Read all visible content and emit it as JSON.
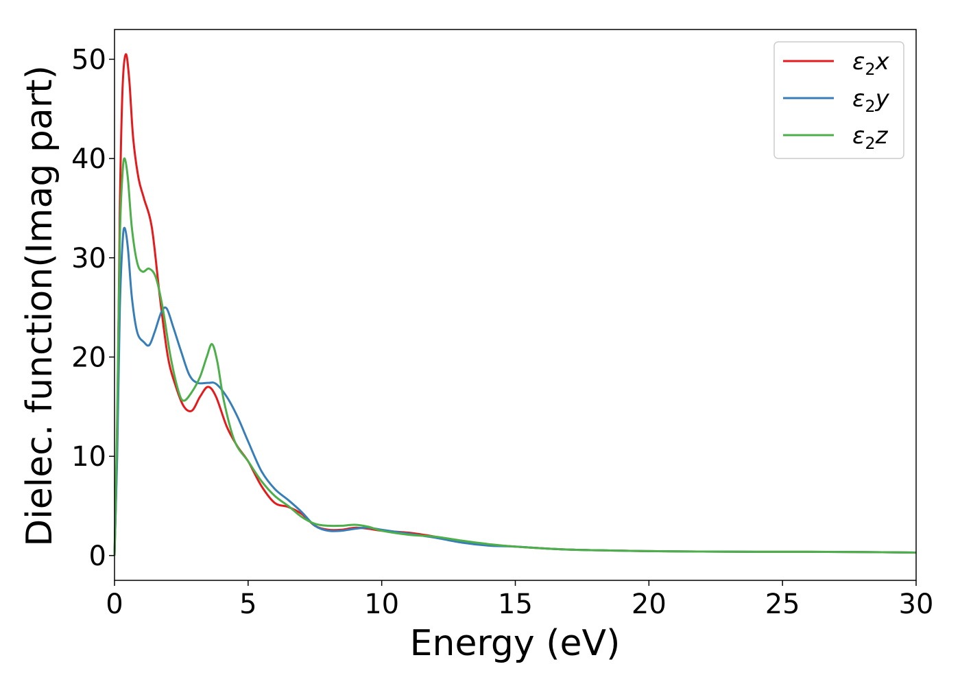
{
  "chart_data": {
    "type": "line",
    "title": "",
    "xlabel": "Energy (eV)",
    "ylabel": "Dielec. function(Imag part)",
    "xlim": [
      0,
      30
    ],
    "ylim": [
      -2.5,
      53
    ],
    "x_ticks": [
      0,
      5,
      10,
      15,
      20,
      25,
      30
    ],
    "y_ticks": [
      0,
      10,
      20,
      30,
      40,
      50
    ],
    "grid": false,
    "legend_position": "top-right",
    "series": [
      {
        "name": "ε2x",
        "legend_base": "ε",
        "legend_sub": "2",
        "legend_var": "x",
        "color": "#e41a1c",
        "points": [
          [
            0,
            0
          ],
          [
            0.1,
            12
          ],
          [
            0.2,
            35
          ],
          [
            0.3,
            47
          ],
          [
            0.42,
            50.5
          ],
          [
            0.55,
            48
          ],
          [
            0.7,
            42
          ],
          [
            0.9,
            38
          ],
          [
            1.1,
            36
          ],
          [
            1.4,
            33
          ],
          [
            1.7,
            26
          ],
          [
            2.0,
            20
          ],
          [
            2.3,
            17
          ],
          [
            2.6,
            15
          ],
          [
            2.9,
            14.6
          ],
          [
            3.2,
            16
          ],
          [
            3.5,
            17
          ],
          [
            3.8,
            16
          ],
          [
            4.2,
            13
          ],
          [
            4.6,
            11
          ],
          [
            5.0,
            9.5
          ],
          [
            5.5,
            7
          ],
          [
            6.0,
            5.3
          ],
          [
            6.5,
            4.9
          ],
          [
            7.0,
            4.2
          ],
          [
            7.5,
            3
          ],
          [
            8.0,
            2.6
          ],
          [
            8.5,
            2.6
          ],
          [
            9.0,
            2.8
          ],
          [
            9.5,
            2.7
          ],
          [
            10.0,
            2.5
          ],
          [
            11.0,
            2.3
          ],
          [
            12.0,
            1.9
          ],
          [
            13.0,
            1.4
          ],
          [
            14.0,
            1.1
          ],
          [
            15.0,
            0.9
          ],
          [
            17.0,
            0.6
          ],
          [
            20.0,
            0.45
          ],
          [
            22.0,
            0.4
          ],
          [
            24.0,
            0.38
          ],
          [
            26.0,
            0.38
          ],
          [
            28.0,
            0.35
          ],
          [
            30.0,
            0.3
          ]
        ]
      },
      {
        "name": "ε2y",
        "legend_base": "ε",
        "legend_sub": "2",
        "legend_var": "y",
        "color": "#377eb8",
        "points": [
          [
            0,
            0
          ],
          [
            0.1,
            10
          ],
          [
            0.2,
            25
          ],
          [
            0.3,
            31.5
          ],
          [
            0.38,
            33
          ],
          [
            0.5,
            31
          ],
          [
            0.65,
            26
          ],
          [
            0.85,
            22.5
          ],
          [
            1.1,
            21.5
          ],
          [
            1.3,
            21.2
          ],
          [
            1.5,
            22.5
          ],
          [
            1.75,
            24.5
          ],
          [
            1.95,
            24.9
          ],
          [
            2.2,
            23
          ],
          [
            2.5,
            20.5
          ],
          [
            2.8,
            18.2
          ],
          [
            3.1,
            17.4
          ],
          [
            3.5,
            17.4
          ],
          [
            3.8,
            17.3
          ],
          [
            4.2,
            16
          ],
          [
            4.6,
            14
          ],
          [
            5.0,
            11.5
          ],
          [
            5.5,
            8.5
          ],
          [
            6.0,
            6.7
          ],
          [
            6.5,
            5.6
          ],
          [
            7.0,
            4.4
          ],
          [
            7.5,
            3
          ],
          [
            8.0,
            2.5
          ],
          [
            8.5,
            2.5
          ],
          [
            9.0,
            2.7
          ],
          [
            9.5,
            2.8
          ],
          [
            10.0,
            2.6
          ],
          [
            11.0,
            2.2
          ],
          [
            12.0,
            1.8
          ],
          [
            13.0,
            1.3
          ],
          [
            14.0,
            1.0
          ],
          [
            15.0,
            0.9
          ],
          [
            17.0,
            0.6
          ],
          [
            20.0,
            0.45
          ],
          [
            22.0,
            0.4
          ],
          [
            24.0,
            0.38
          ],
          [
            26.0,
            0.38
          ],
          [
            28.0,
            0.35
          ],
          [
            30.0,
            0.3
          ]
        ]
      },
      {
        "name": "ε2z",
        "legend_base": "ε",
        "legend_sub": "2",
        "legend_var": "z",
        "color": "#4daf4a",
        "points": [
          [
            0,
            0
          ],
          [
            0.1,
            14
          ],
          [
            0.2,
            32
          ],
          [
            0.3,
            38.5
          ],
          [
            0.38,
            40
          ],
          [
            0.5,
            38
          ],
          [
            0.65,
            33
          ],
          [
            0.85,
            29.5
          ],
          [
            1.05,
            28.6
          ],
          [
            1.3,
            28.9
          ],
          [
            1.55,
            28
          ],
          [
            1.8,
            25
          ],
          [
            2.1,
            20
          ],
          [
            2.4,
            16.5
          ],
          [
            2.6,
            15.6
          ],
          [
            2.9,
            16.5
          ],
          [
            3.2,
            18
          ],
          [
            3.45,
            20
          ],
          [
            3.65,
            21.3
          ],
          [
            3.85,
            19.5
          ],
          [
            4.1,
            15.5
          ],
          [
            4.5,
            11.5
          ],
          [
            5.0,
            9.5
          ],
          [
            5.5,
            7.5
          ],
          [
            6.0,
            6
          ],
          [
            6.5,
            5
          ],
          [
            7.0,
            3.9
          ],
          [
            7.5,
            3.2
          ],
          [
            8.0,
            3
          ],
          [
            8.5,
            3
          ],
          [
            9.0,
            3.1
          ],
          [
            9.5,
            2.9
          ],
          [
            10.0,
            2.5
          ],
          [
            11.0,
            2.1
          ],
          [
            12.0,
            1.9
          ],
          [
            13.0,
            1.5
          ],
          [
            14.0,
            1.15
          ],
          [
            15.0,
            0.9
          ],
          [
            17.0,
            0.6
          ],
          [
            20.0,
            0.45
          ],
          [
            22.0,
            0.4
          ],
          [
            24.0,
            0.38
          ],
          [
            26.0,
            0.38
          ],
          [
            28.0,
            0.35
          ],
          [
            30.0,
            0.3
          ]
        ]
      }
    ]
  }
}
